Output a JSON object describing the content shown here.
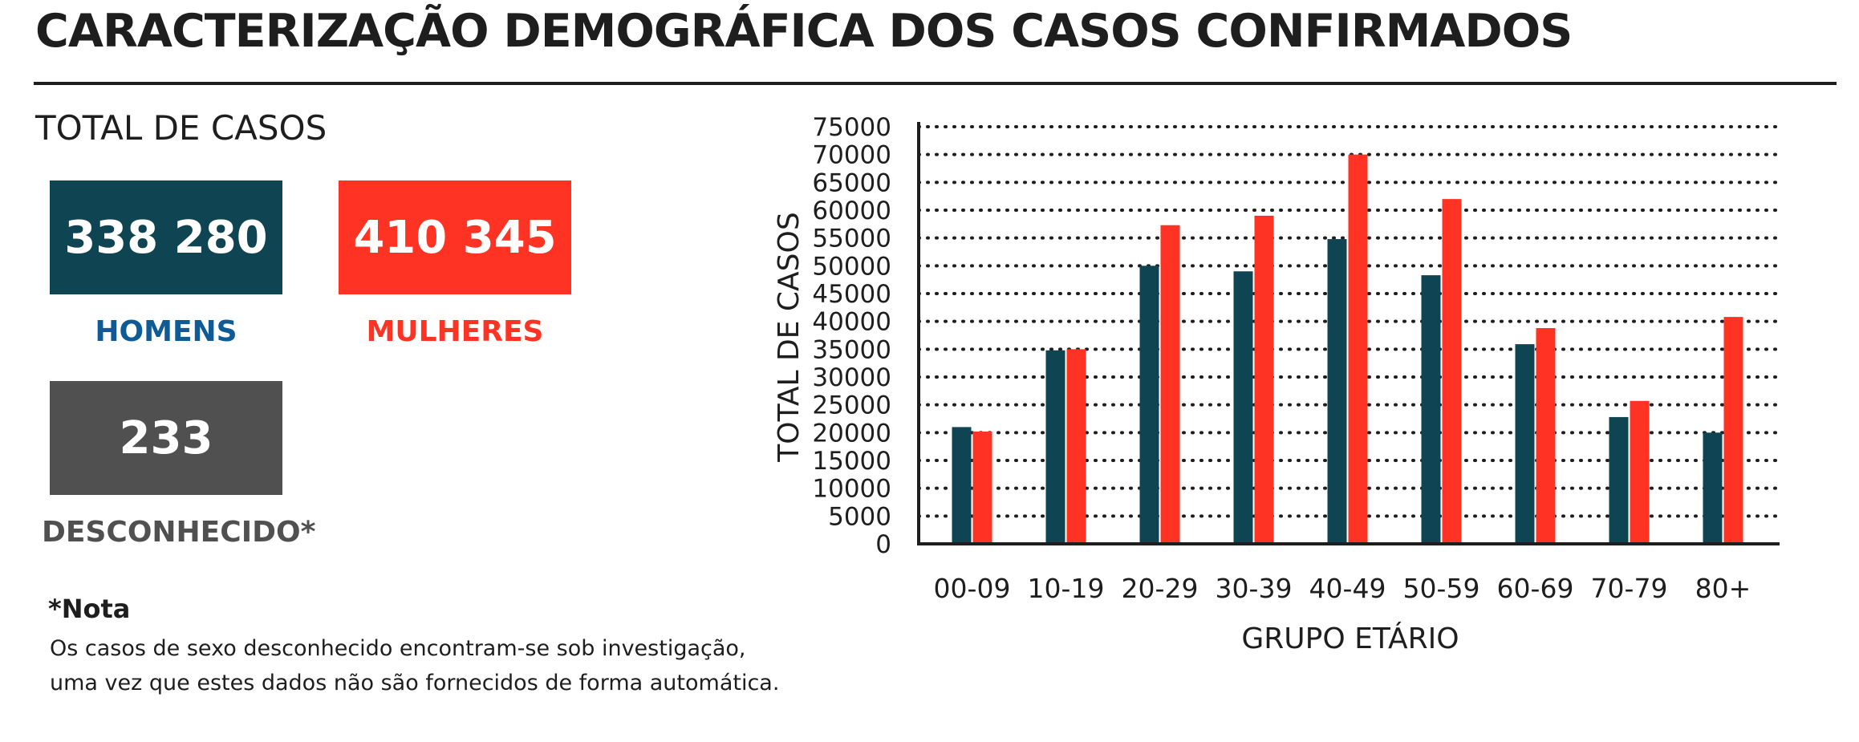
{
  "header": {
    "title": "CARACTERIZAÇÃO DEMOGRÁFICA DOS CASOS CONFIRMADOS"
  },
  "summary": {
    "section_label": "TOTAL DE CASOS",
    "men": {
      "value": "338 280",
      "label": "HOMENS"
    },
    "women": {
      "value": "410 345",
      "label": "MULHERES"
    },
    "unknown": {
      "value": "233",
      "label": "DESCONHECIDO*"
    }
  },
  "note": {
    "title": "*Nota",
    "lines": [
      "Os casos de sexo desconhecido encontram-se sob investigação,",
      "uma vez que estes dados não são fornecidos de forma automática."
    ]
  },
  "colors": {
    "men": "#0f4452",
    "women": "#ff3324",
    "unknown": "#505050",
    "men_label": "#0f5b96",
    "text": "#1e1e1e"
  },
  "chart_data": {
    "type": "bar",
    "categories": [
      "00-09",
      "10-19",
      "20-29",
      "30-39",
      "40-49",
      "50-59",
      "60-69",
      "70-79",
      "80+"
    ],
    "series": [
      {
        "key": "men",
        "color": "#0f4452",
        "values": [
          21000,
          34800,
          50000,
          49000,
          54800,
          48300,
          35900,
          22800,
          20000
        ]
      },
      {
        "key": "women",
        "color": "#ff3324",
        "values": [
          20200,
          35000,
          57300,
          59000,
          70000,
          62000,
          38800,
          25700,
          40800
        ]
      }
    ],
    "xlabel": "GRUPO ETÁRIO",
    "ylabel": "TOTAL DE CASOS",
    "ylim": [
      0,
      75000
    ],
    "yticks": [
      0,
      5000,
      10000,
      15000,
      20000,
      25000,
      30000,
      35000,
      40000,
      45000,
      50000,
      55000,
      60000,
      65000,
      70000,
      75000
    ],
    "grid": true,
    "grid_style": "dotted",
    "legend": "none"
  }
}
